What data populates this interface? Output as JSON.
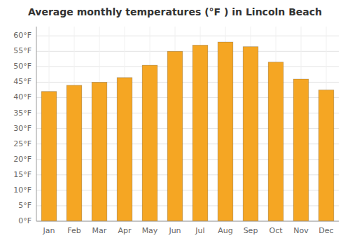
{
  "chart_data": {
    "type": "bar",
    "title": "Average monthly temperatures (°F ) in Lincoln Beach",
    "categories": [
      "Jan",
      "Feb",
      "Mar",
      "Apr",
      "May",
      "Jun",
      "Jul",
      "Aug",
      "Sep",
      "Oct",
      "Nov",
      "Dec"
    ],
    "values": [
      42,
      44,
      45,
      46.5,
      50.5,
      55,
      57,
      58,
      56.5,
      51.5,
      46,
      42.5
    ],
    "color": "#F5A623",
    "ylim": [
      0,
      63
    ],
    "yticks": [
      {
        "value": 0,
        "label": "0°F"
      },
      {
        "value": 5,
        "label": "5°F"
      },
      {
        "value": 10,
        "label": "10°F"
      },
      {
        "value": 15,
        "label": "15°F"
      },
      {
        "value": 20,
        "label": "20°F"
      },
      {
        "value": 25,
        "label": "25°F"
      },
      {
        "value": 30,
        "label": "30°F"
      },
      {
        "value": 35,
        "label": "35°F"
      },
      {
        "value": 40,
        "label": "40°F"
      },
      {
        "value": 45,
        "label": "45°F"
      },
      {
        "value": 50,
        "label": "50°F"
      },
      {
        "value": 55,
        "label": "55°F"
      },
      {
        "value": 60,
        "label": "60°F"
      }
    ],
    "grid": true
  }
}
